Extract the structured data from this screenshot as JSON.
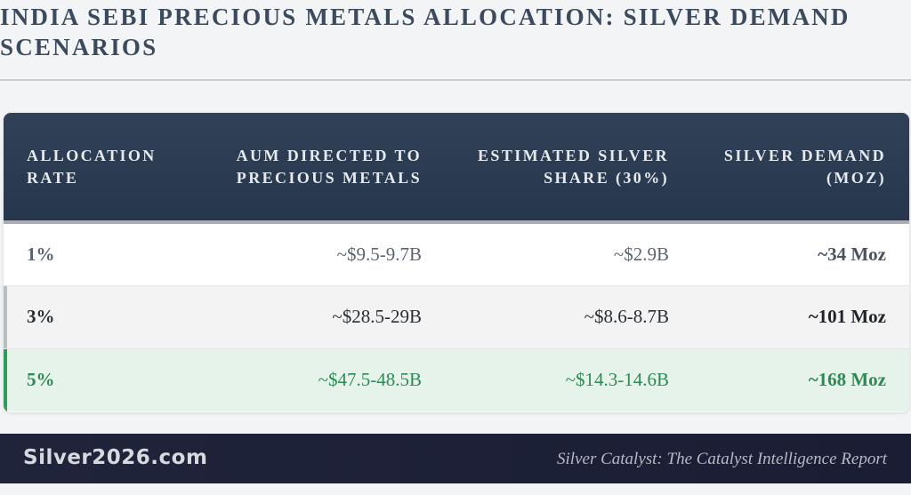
{
  "title": "INDIA SEBI PRECIOUS METALS ALLOCATION: SILVER DEMAND SCENARIOS",
  "table": {
    "headers": [
      "ALLOCATION RATE",
      "AUM DIRECTED TO PRECIOUS METALS",
      "ESTIMATED SILVER SHARE (30%)",
      "SILVER DEMAND (MOZ)"
    ],
    "rows": [
      [
        "1%",
        "~$9.5-9.7B",
        "~$2.9B",
        "~34 Moz"
      ],
      [
        "3%",
        "~$28.5-29B",
        "~$8.6-8.7B",
        "~101 Moz"
      ],
      [
        "5%",
        "~$47.5-48.5B",
        "~$14.3-14.6B",
        "~168 Moz"
      ]
    ]
  },
  "footer": {
    "brand": "Silver2026.com",
    "report": "Silver Catalyst: The Catalyst Intelligence Report"
  },
  "colors": {
    "header_bg": "#2c3c52",
    "highlight_green": "#2e8a55",
    "footer_bg": "#1c1f35"
  }
}
